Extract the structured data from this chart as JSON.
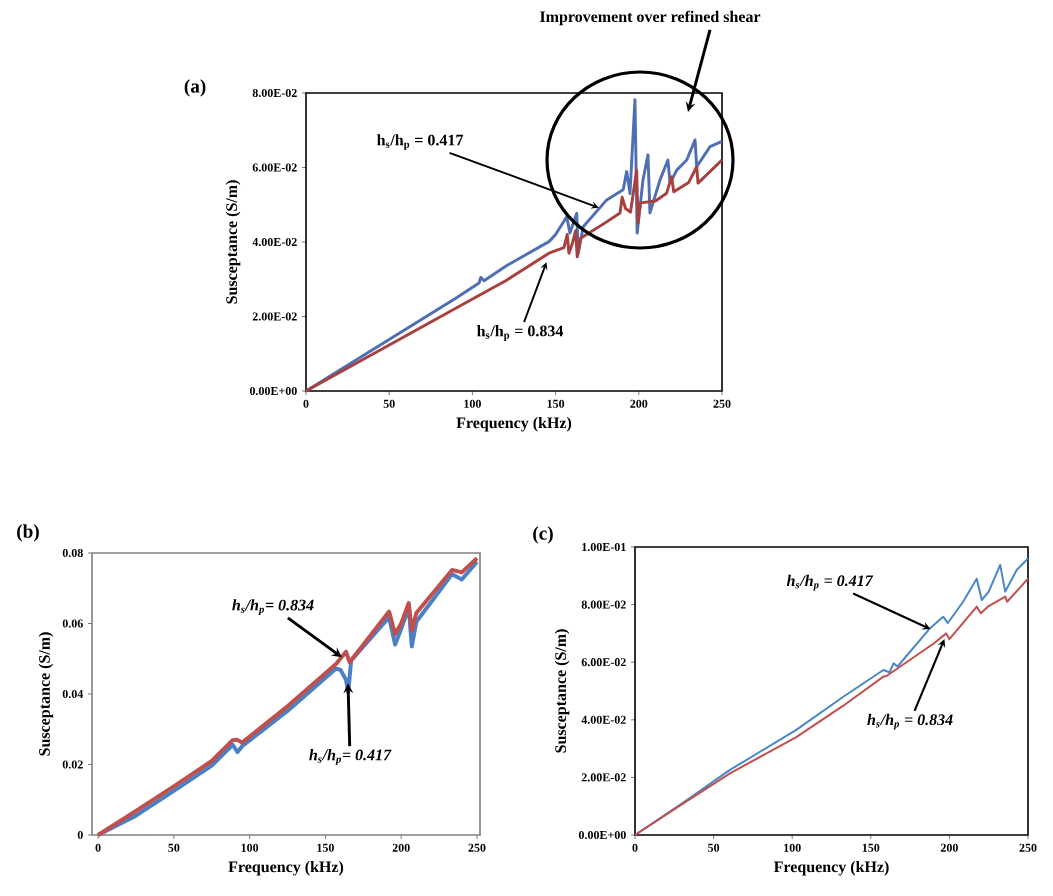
{
  "chart_data": [
    {
      "type": "line",
      "title": "(a)",
      "xlabel": "Frequency (kHz)",
      "ylabel": "Susceptance (S/m)",
      "xlim": [
        0,
        250
      ],
      "ylim": [
        0,
        0.08
      ],
      "xticks": [
        0,
        50,
        100,
        150,
        200,
        250
      ],
      "yticks": [
        {
          "value": 0,
          "label": "0.00E+00"
        },
        {
          "value": 0.02,
          "label": "2.00E-02"
        },
        {
          "value": 0.04,
          "label": "4.00E-02"
        },
        {
          "value": 0.06,
          "label": "6.00E-02"
        },
        {
          "value": 0.08,
          "label": "8.00E-02"
        }
      ],
      "series": [
        {
          "color": "#4f6fb5",
          "x": [
            0,
            30,
            60,
            90,
            104,
            105,
            107,
            120,
            146,
            150,
            156.7,
            158.6,
            162.7,
            163.6,
            166.6,
            180.7,
            190.6,
            192.7,
            194.7,
            197.7,
            199,
            202.5,
            205.5,
            206.7,
            212.7,
            217.5,
            218.8,
            222.8,
            228.8,
            233.8,
            234.8,
            242.8,
            250
          ],
          "values": [
            0,
            0.0083,
            0.0166,
            0.0249,
            0.029,
            0.0305,
            0.0296,
            0.0335,
            0.0401,
            0.042,
            0.0468,
            0.0424,
            0.0477,
            0.037,
            0.0441,
            0.0513,
            0.054,
            0.0589,
            0.053,
            0.0782,
            0.0424,
            0.0566,
            0.0634,
            0.0478,
            0.0566,
            0.062,
            0.0558,
            0.0593,
            0.062,
            0.0674,
            0.0602,
            0.0656,
            0.067
          ]
        },
        {
          "color": "#a8403d",
          "x": [
            0,
            30,
            60,
            90,
            120,
            146,
            155,
            157,
            158,
            160,
            162,
            163,
            165,
            180,
            188.7,
            190,
            192,
            195,
            198.7,
            199.5,
            201,
            210,
            216.7,
            219.7,
            221,
            230,
            234.8,
            235.6,
            250
          ],
          "values": [
            0,
            0.0074,
            0.0148,
            0.0222,
            0.0296,
            0.037,
            0.0385,
            0.042,
            0.037,
            0.0395,
            0.043,
            0.036,
            0.041,
            0.0452,
            0.0478,
            0.052,
            0.049,
            0.048,
            0.0593,
            0.0451,
            0.0505,
            0.051,
            0.0531,
            0.0575,
            0.0535,
            0.056,
            0.0602,
            0.0558,
            0.062
          ]
        }
      ],
      "annotations": [
        {
          "text": "h$_{s}$/h$_{p}$ = 0.417",
          "x": 176.7,
          "y": 0.0491
        },
        {
          "text": "h$_{s}$/h$_{p}$ = 0.834",
          "x": 144.8,
          "y": 0.0349
        },
        "Improvement over refined shear"
      ]
    },
    {
      "type": "line",
      "title": "(b)",
      "xlabel": "Frequency (kHz)",
      "ylabel": "Susceptance (S/m)",
      "xlim": [
        -4,
        252
      ],
      "ylim": [
        0,
        0.08
      ],
      "xticks": [
        0,
        50,
        100,
        150,
        200,
        250
      ],
      "yticks": [
        0,
        0.02,
        0.04,
        0.06,
        0.08
      ],
      "series": [
        {
          "color": "#4a80c4",
          "x": [
            0,
            25,
            50,
            75,
            88.8,
            92,
            95,
            125,
            157,
            160,
            163.6,
            165,
            167,
            192,
            196,
            200,
            205,
            207,
            210,
            233.6,
            240,
            250
          ],
          "values": [
            0,
            0.0055,
            0.0125,
            0.0197,
            0.0256,
            0.0235,
            0.0252,
            0.0352,
            0.0472,
            0.0468,
            0.044,
            0.0405,
            0.0495,
            0.0618,
            0.054,
            0.0585,
            0.0645,
            0.0535,
            0.0605,
            0.074,
            0.0725,
            0.0775
          ]
        },
        {
          "color": "#c0504d",
          "x": [
            0,
            25,
            50,
            75,
            88.8,
            92,
            95,
            125,
            157,
            163.6,
            166,
            192,
            196,
            200,
            205,
            207,
            210,
            233.6,
            240,
            250
          ],
          "values": [
            0,
            0.0068,
            0.0138,
            0.021,
            0.0269,
            0.027,
            0.0262,
            0.0365,
            0.0485,
            0.052,
            0.049,
            0.0634,
            0.057,
            0.06,
            0.0658,
            0.058,
            0.063,
            0.0752,
            0.0745,
            0.0785
          ]
        }
      ],
      "annotations": [
        {
          "text": "h$_{s}$/h$_{p}$= 0.834",
          "x": 161.6,
          "y": 0.0502
        },
        {
          "text": "h$_{s}$/h$_{p}$= 0.417",
          "x": 164.9,
          "y": 0.0434
        }
      ]
    },
    {
      "type": "line",
      "title": "(c)",
      "xlabel": "Frequency (kHz)",
      "ylabel": "Susceptance (S/m)",
      "xlim": [
        0,
        250
      ],
      "ylim": [
        0,
        0.1
      ],
      "xticks": [
        0,
        50,
        100,
        150,
        200,
        250
      ],
      "yticks": [
        {
          "value": 0,
          "label": "0.00E+00"
        },
        {
          "value": 0.02,
          "label": "2.00E-02"
        },
        {
          "value": 0.04,
          "label": "4.00E-02"
        },
        {
          "value": 0.06,
          "label": "6.00E-02"
        },
        {
          "value": 0.08,
          "label": "8.00E-02"
        },
        {
          "value": 0.1,
          "label": "1.00E-01"
        }
      ],
      "series": [
        {
          "color": "#4a86c8",
          "x": [
            0,
            30,
            60.4,
            102.6,
            132.5,
            158,
            162,
            164.5,
            167,
            187.7,
            196,
            199,
            208.7,
            217.4,
            220.6,
            225,
            232.3,
            235.5,
            242.8,
            250
          ],
          "values": [
            0,
            0.011,
            0.0226,
            0.0365,
            0.048,
            0.0573,
            0.0565,
            0.0596,
            0.0585,
            0.0718,
            0.0758,
            0.0736,
            0.081,
            0.089,
            0.0816,
            0.0845,
            0.0938,
            0.0845,
            0.092,
            0.096
          ]
        },
        {
          "color": "#c0504d",
          "x": [
            0,
            30,
            60.4,
            102.6,
            132.5,
            158,
            160,
            190,
            198,
            200,
            217.4,
            220,
            225,
            235.5,
            236.7,
            250
          ],
          "values": [
            0,
            0.0107,
            0.0214,
            0.034,
            0.0449,
            0.055,
            0.0552,
            0.0665,
            0.07,
            0.068,
            0.0793,
            0.077,
            0.0795,
            0.0828,
            0.081,
            0.089
          ]
        }
      ],
      "annotations": [
        {
          "text": "h$_{s}$/h$_{p}$ = 0.417",
          "x": 188.7,
          "y": 0.0713
        },
        {
          "text": "h$_{s}$/h$_{p}$ = 0.834",
          "x": 197.2,
          "y": 0.0685
        }
      ]
    }
  ]
}
